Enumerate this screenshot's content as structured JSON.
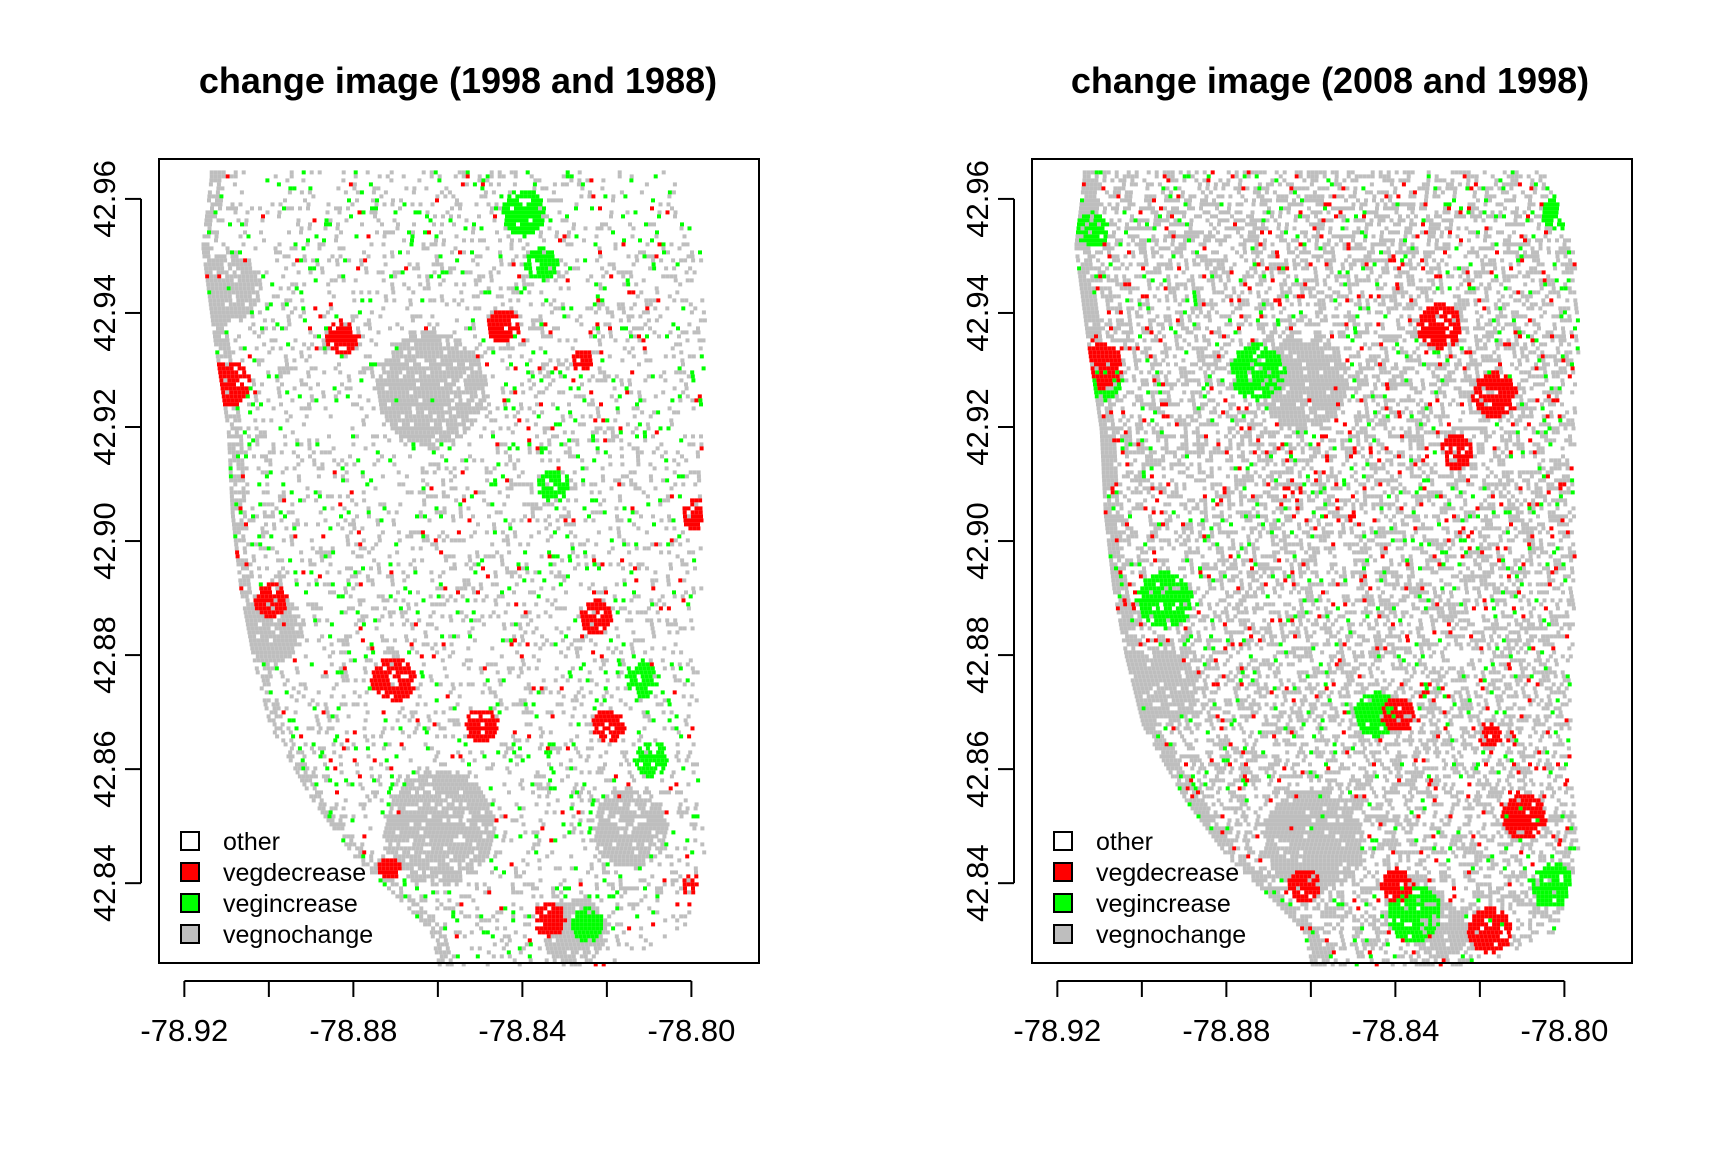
{
  "panels": [
    {
      "id": "p1",
      "title": "change image (1998 and 1988)",
      "seed": 11,
      "hotspots": [
        {
          "cls": "vegdecrease",
          "x": -78.91,
          "y": 42.928,
          "r": 0.004
        },
        {
          "cls": "vegdecrease",
          "x": -78.799,
          "y": 42.905,
          "r": 0.003
        },
        {
          "cls": "vegdecrease",
          "x": -78.883,
          "y": 42.936,
          "r": 0.003
        },
        {
          "cls": "vegdecrease",
          "x": -78.845,
          "y": 42.938,
          "r": 0.003
        },
        {
          "cls": "vegdecrease",
          "x": -78.826,
          "y": 42.932,
          "r": 0.002
        },
        {
          "cls": "vegdecrease",
          "x": -78.823,
          "y": 42.887,
          "r": 0.003
        },
        {
          "cls": "vegdecrease",
          "x": -78.9,
          "y": 42.89,
          "r": 0.003
        },
        {
          "cls": "vegdecrease",
          "x": -78.871,
          "y": 42.876,
          "r": 0.004
        },
        {
          "cls": "vegdecrease",
          "x": -78.85,
          "y": 42.868,
          "r": 0.003
        },
        {
          "cls": "vegdecrease",
          "x": -78.82,
          "y": 42.868,
          "r": 0.003
        },
        {
          "cls": "vegdecrease",
          "x": -78.872,
          "y": 42.843,
          "r": 0.002
        },
        {
          "cls": "vegdecrease",
          "x": -78.834,
          "y": 42.834,
          "r": 0.003
        },
        {
          "cls": "vegdecrease",
          "x": -78.8,
          "y": 42.84,
          "r": 0.002
        },
        {
          "cls": "vegincrease",
          "x": -78.84,
          "y": 42.958,
          "r": 0.004
        },
        {
          "cls": "vegincrease",
          "x": -78.836,
          "y": 42.949,
          "r": 0.003
        },
        {
          "cls": "vegincrease",
          "x": -78.812,
          "y": 42.876,
          "r": 0.003
        },
        {
          "cls": "vegincrease",
          "x": -78.81,
          "y": 42.862,
          "r": 0.003
        },
        {
          "cls": "vegincrease",
          "x": -78.833,
          "y": 42.91,
          "r": 0.003
        },
        {
          "cls": "vegincrease",
          "x": -78.825,
          "y": 42.833,
          "r": 0.003
        },
        {
          "cls": "vegnochange",
          "x": -78.862,
          "y": 42.927,
          "r": 0.01
        },
        {
          "cls": "vegnochange",
          "x": -78.91,
          "y": 42.945,
          "r": 0.006
        },
        {
          "cls": "vegnochange",
          "x": -78.9,
          "y": 42.885,
          "r": 0.006
        },
        {
          "cls": "vegnochange",
          "x": -78.86,
          "y": 42.85,
          "r": 0.01
        },
        {
          "cls": "vegnochange",
          "x": -78.815,
          "y": 42.85,
          "r": 0.007
        },
        {
          "cls": "vegnochange",
          "x": -78.828,
          "y": 42.832,
          "r": 0.006
        }
      ]
    },
    {
      "id": "p2",
      "title": "change image (2008 and 1998)",
      "seed": 37,
      "hotspots": [
        {
          "cls": "vegdecrease",
          "x": -78.91,
          "y": 42.931,
          "r": 0.004
        },
        {
          "cls": "vegdecrease",
          "x": -78.83,
          "y": 42.938,
          "r": 0.004
        },
        {
          "cls": "vegdecrease",
          "x": -78.817,
          "y": 42.926,
          "r": 0.004
        },
        {
          "cls": "vegdecrease",
          "x": -78.826,
          "y": 42.916,
          "r": 0.003
        },
        {
          "cls": "vegdecrease",
          "x": -78.84,
          "y": 42.87,
          "r": 0.003
        },
        {
          "cls": "vegdecrease",
          "x": -78.818,
          "y": 42.866,
          "r": 0.002
        },
        {
          "cls": "vegdecrease",
          "x": -78.81,
          "y": 42.852,
          "r": 0.004
        },
        {
          "cls": "vegdecrease",
          "x": -78.862,
          "y": 42.84,
          "r": 0.003
        },
        {
          "cls": "vegdecrease",
          "x": -78.84,
          "y": 42.84,
          "r": 0.003
        },
        {
          "cls": "vegdecrease",
          "x": -78.818,
          "y": 42.832,
          "r": 0.004
        },
        {
          "cls": "vegincrease",
          "x": -78.912,
          "y": 42.955,
          "r": 0.003
        },
        {
          "cls": "vegincrease",
          "x": -78.909,
          "y": 42.928,
          "r": 0.003
        },
        {
          "cls": "vegincrease",
          "x": -78.895,
          "y": 42.89,
          "r": 0.005
        },
        {
          "cls": "vegincrease",
          "x": -78.873,
          "y": 42.93,
          "r": 0.005
        },
        {
          "cls": "vegincrease",
          "x": -78.845,
          "y": 42.87,
          "r": 0.004
        },
        {
          "cls": "vegincrease",
          "x": -78.836,
          "y": 42.835,
          "r": 0.005
        },
        {
          "cls": "vegincrease",
          "x": -78.803,
          "y": 42.84,
          "r": 0.004
        },
        {
          "cls": "vegincrease",
          "x": -78.802,
          "y": 42.958,
          "r": 0.003
        },
        {
          "cls": "vegnochange",
          "x": -78.862,
          "y": 42.928,
          "r": 0.008
        },
        {
          "cls": "vegnochange",
          "x": -78.86,
          "y": 42.848,
          "r": 0.009
        },
        {
          "cls": "vegnochange",
          "x": -78.83,
          "y": 42.832,
          "r": 0.005
        },
        {
          "cls": "vegnochange",
          "x": -78.895,
          "y": 42.875,
          "r": 0.006
        }
      ]
    }
  ],
  "legend": [
    {
      "id": "other",
      "label": "other",
      "color": "#ffffff"
    },
    {
      "id": "vegdecrease",
      "label": "vegdecrease",
      "color": "#ff0000"
    },
    {
      "id": "vegincrease",
      "label": "vegincrease",
      "color": "#00ff00"
    },
    {
      "id": "vegnochange",
      "label": "vegnochange",
      "color": "#bebebe"
    }
  ],
  "axes": {
    "x_ticks": [
      -78.92,
      -78.9,
      -78.88,
      -78.86,
      -78.84,
      -78.82,
      -78.8
    ],
    "x_tick_labels": [
      "-78.92",
      "",
      "-78.88",
      "",
      "-78.84",
      "",
      "-78.80"
    ],
    "y_ticks": [
      42.84,
      42.86,
      42.88,
      42.9,
      42.92,
      42.94,
      42.96
    ],
    "y_tick_labels": [
      "42.84",
      "42.86",
      "42.88",
      "42.90",
      "42.92",
      "42.94",
      "42.96"
    ],
    "xlim": [
      -78.926,
      -78.784
    ],
    "ylim": [
      42.826,
      42.967
    ]
  },
  "chart_data": [
    {
      "type": "heatmap",
      "title": "change image (1998 and 1988)",
      "xlabel": "",
      "ylabel": "",
      "xlim": [
        -78.926,
        -78.784
      ],
      "ylim": [
        42.826,
        42.967
      ],
      "categories": [
        "other",
        "vegdecrease",
        "vegincrease",
        "vegnochange"
      ],
      "colors": [
        "#ffffff",
        "#ff0000",
        "#00ff00",
        "#bebebe"
      ],
      "legend_position": "bottom-left",
      "grid": false
    },
    {
      "type": "heatmap",
      "title": "change image (2008 and 1998)",
      "xlabel": "",
      "ylabel": "",
      "xlim": [
        -78.926,
        -78.784
      ],
      "ylim": [
        42.826,
        42.967
      ],
      "categories": [
        "other",
        "vegdecrease",
        "vegincrease",
        "vegnochange"
      ],
      "colors": [
        "#ffffff",
        "#ff0000",
        "#00ff00",
        "#bebebe"
      ],
      "legend_position": "bottom-left",
      "grid": false
    }
  ]
}
